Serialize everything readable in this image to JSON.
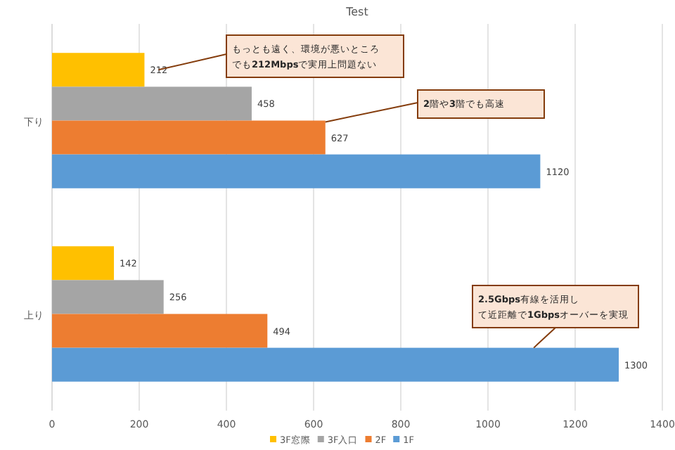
{
  "chart_data": {
    "type": "bar",
    "orientation": "horizontal",
    "title": "Test",
    "categories": [
      "下り",
      "上り"
    ],
    "series": [
      {
        "name": "3F窓際",
        "color": "#ffc000",
        "values": [
          212,
          142
        ]
      },
      {
        "name": "3F入口",
        "color": "#a5a5a5",
        "values": [
          458,
          256
        ]
      },
      {
        "name": "2F",
        "color": "#ed7d31",
        "values": [
          627,
          494
        ]
      },
      {
        "name": "1F",
        "color": "#5b9bd5",
        "values": [
          1120,
          1300
        ]
      }
    ],
    "xlim": [
      0,
      1400
    ],
    "xticks": [
      0,
      200,
      400,
      600,
      800,
      1000,
      1200,
      1400
    ],
    "grid": "x",
    "legend": "bottom",
    "data_labels": true,
    "annotations": [
      "もっとも遠く、環境が悪いところでも**212Mbps**で実用上問題ない",
      {
        "text": "**2**階や**3**階でも高速",
        "x": 627,
        "y": "下り"
      },
      "**2.5Gbps**有線を活用して近距離で**1Gbps**オーバーを実現"
    ]
  }
}
